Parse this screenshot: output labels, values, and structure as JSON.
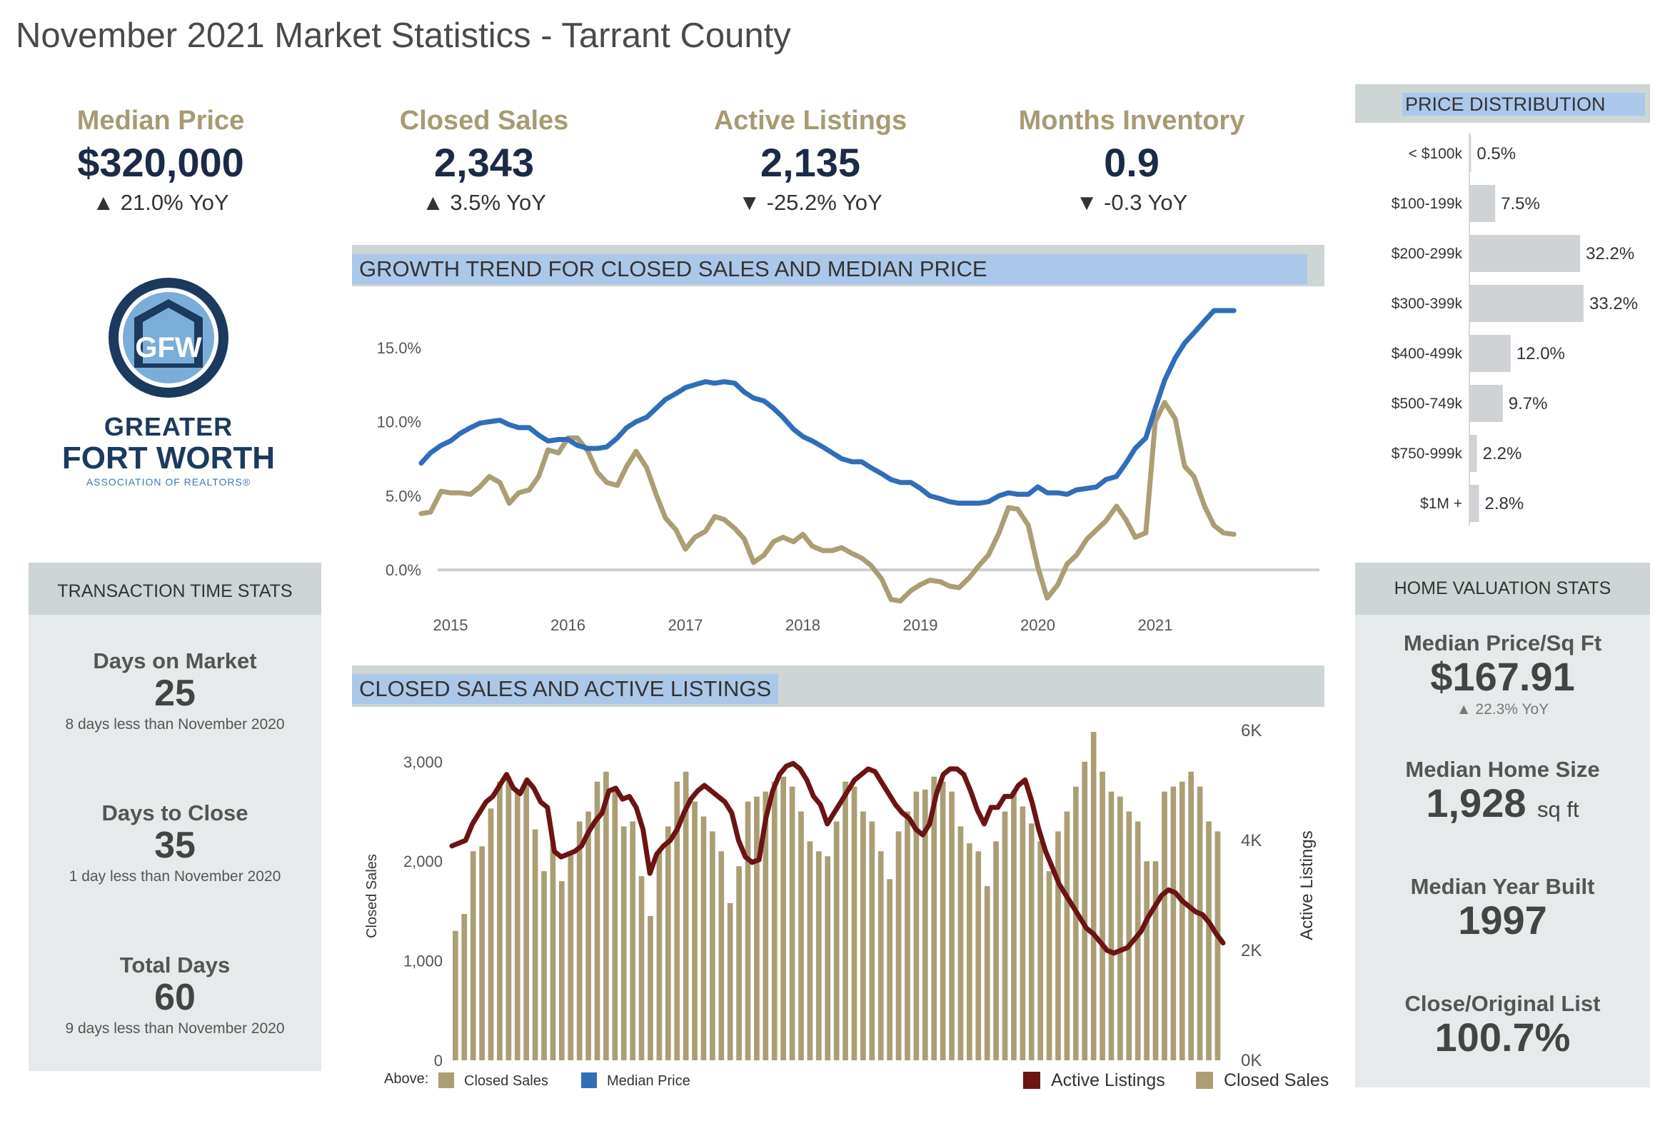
{
  "title": "November 2021 Market Statistics - Tarrant County",
  "kpis": [
    {
      "label": "Median Price",
      "value": "$320,000",
      "change": "▲ 21.0% YoY"
    },
    {
      "label": "Closed Sales",
      "value": "2,343",
      "change": "▲ 3.5% YoY"
    },
    {
      "label": "Active Listings",
      "value": "2,135",
      "change": "▼ -25.2% YoY"
    },
    {
      "label": "Months Inventory",
      "value": "0.9",
      "change": "▼ -0.3 YoY"
    }
  ],
  "logo": {
    "line1": "GREATER",
    "line2": "FORT WORTH",
    "line3": "ASSOCIATION OF REALTORS®",
    "mark": "GFW"
  },
  "transaction": {
    "header": "TRANSACTION TIME STATS",
    "stats": [
      {
        "label": "Days on Market",
        "value": "25",
        "sub": "8 days less than November 2020"
      },
      {
        "label": "Days to Close",
        "value": "35",
        "sub": "1 day less than November 2020"
      },
      {
        "label": "Total Days",
        "value": "60",
        "sub": "9 days less than November 2020"
      }
    ]
  },
  "valuation": {
    "header": "HOME VALUATION STATS",
    "price_sqft_label": "Median Price/Sq Ft",
    "price_sqft_value": "$167.91",
    "price_sqft_change": "▲ 22.3% YoY",
    "home_size_label": "Median Home Size",
    "home_size_value": "1,928",
    "home_size_unit": "sq ft",
    "year_built_label": "Median Year Built",
    "year_built_value": "1997",
    "close_list_label": "Close/Original List",
    "close_list_value": "100.7%"
  },
  "colors": {
    "closed_sales": "#ab9e75",
    "median_price": "#2f6eb8",
    "active_listings": "#6b1414",
    "kpi_label": "#a89a72",
    "kpi_value": "#1b2a47",
    "header_highlight": "#aac8ea",
    "header_bg": "#cdd5d5",
    "panel_bg": "#e6eaeb",
    "dist_bar": "#d0d3d6"
  },
  "chart_data": [
    {
      "id": "growth",
      "type": "line",
      "title": "GROWTH TREND FOR CLOSED SALES AND MEDIAN PRICE",
      "ylim": [
        -2.5,
        17.5
      ],
      "yticks": [
        0,
        5,
        10,
        15
      ],
      "ytick_labels": [
        "0.0%",
        "5.0%",
        "10.0%",
        "15.0%"
      ],
      "xlim": [
        2014.75,
        2022.0
      ],
      "xticks": [
        2015,
        2016,
        2017,
        2018,
        2019,
        2020,
        2021
      ],
      "xtick_labels": [
        "2015",
        "2016",
        "2017",
        "2018",
        "2019",
        "2020",
        "2021"
      ],
      "legend": {
        "position": "bottom-left",
        "prefix": "Above:",
        "entries": [
          "Closed Sales",
          "Median Price"
        ]
      },
      "series": [
        {
          "name": "Closed Sales",
          "color": "#ab9e75",
          "x": [
            2014.75,
            2014.83,
            2014.92,
            2015.0,
            2015.08,
            2015.17,
            2015.25,
            2015.33,
            2015.42,
            2015.5,
            2015.58,
            2015.67,
            2015.75,
            2015.83,
            2015.92,
            2016.0,
            2016.08,
            2016.17,
            2016.25,
            2016.33,
            2016.42,
            2016.5,
            2016.58,
            2016.67,
            2016.75,
            2016.83,
            2016.92,
            2017.0,
            2017.08,
            2017.17,
            2017.25,
            2017.33,
            2017.42,
            2017.5,
            2017.58,
            2017.67,
            2017.75,
            2017.83,
            2017.92,
            2018.0,
            2018.08,
            2018.17,
            2018.25,
            2018.33,
            2018.42,
            2018.5,
            2018.58,
            2018.67,
            2018.75,
            2018.83,
            2018.92,
            2019.0,
            2019.08,
            2019.17,
            2019.25,
            2019.33,
            2019.42,
            2019.5,
            2019.58,
            2019.67,
            2019.75,
            2019.83,
            2019.92,
            2020.0,
            2020.08,
            2020.17,
            2020.25,
            2020.33,
            2020.42,
            2020.5,
            2020.58,
            2020.67,
            2020.75,
            2020.83,
            2020.92,
            2021.0,
            2021.08,
            2021.17,
            2021.25,
            2021.33,
            2021.42,
            2021.5,
            2021.58,
            2021.67
          ],
          "values": [
            3.8,
            3.9,
            5.3,
            5.2,
            5.2,
            5.1,
            5.6,
            6.3,
            5.9,
            4.5,
            5.2,
            5.4,
            6.3,
            8.1,
            7.9,
            8.9,
            8.9,
            8.0,
            6.6,
            5.9,
            5.7,
            7.0,
            8.0,
            6.9,
            5.1,
            3.5,
            2.7,
            1.4,
            2.2,
            2.6,
            3.6,
            3.4,
            2.8,
            2.1,
            0.5,
            1.0,
            1.9,
            2.2,
            1.9,
            2.4,
            1.6,
            1.3,
            1.3,
            1.5,
            1.1,
            0.8,
            0.3,
            -0.6,
            -2.0,
            -2.1,
            -1.4,
            -1.0,
            -0.7,
            -0.8,
            -1.1,
            -1.2,
            -0.5,
            0.3,
            1.0,
            2.5,
            4.2,
            4.1,
            3.0,
            0.2,
            -1.9,
            -1.0,
            0.4,
            1.0,
            2.1,
            2.7,
            3.3,
            4.3,
            3.4,
            2.2,
            2.5,
            10.0,
            11.3,
            10.2,
            7.0,
            6.3,
            4.3,
            3.0,
            2.5,
            2.4
          ]
        },
        {
          "name": "Median Price",
          "color": "#2f6eb8",
          "x": [
            2014.75,
            2014.83,
            2014.92,
            2015.0,
            2015.08,
            2015.17,
            2015.25,
            2015.33,
            2015.42,
            2015.5,
            2015.58,
            2015.67,
            2015.75,
            2015.83,
            2015.92,
            2016.0,
            2016.08,
            2016.17,
            2016.25,
            2016.33,
            2016.42,
            2016.5,
            2016.58,
            2016.67,
            2016.75,
            2016.83,
            2016.92,
            2017.0,
            2017.08,
            2017.17,
            2017.25,
            2017.33,
            2017.42,
            2017.5,
            2017.58,
            2017.67,
            2017.75,
            2017.83,
            2017.92,
            2018.0,
            2018.08,
            2018.17,
            2018.25,
            2018.33,
            2018.42,
            2018.5,
            2018.58,
            2018.67,
            2018.75,
            2018.83,
            2018.92,
            2019.0,
            2019.08,
            2019.17,
            2019.25,
            2019.33,
            2019.42,
            2019.5,
            2019.58,
            2019.67,
            2019.75,
            2019.83,
            2019.92,
            2020.0,
            2020.08,
            2020.17,
            2020.25,
            2020.33,
            2020.42,
            2020.5,
            2020.58,
            2020.67,
            2020.75,
            2020.83,
            2020.92,
            2021.0,
            2021.08,
            2021.17,
            2021.25,
            2021.33,
            2021.42,
            2021.5,
            2021.58,
            2021.67
          ],
          "values": [
            7.2,
            7.9,
            8.4,
            8.7,
            9.2,
            9.6,
            9.9,
            10.0,
            10.1,
            9.8,
            9.6,
            9.6,
            9.1,
            8.7,
            8.8,
            8.8,
            8.4,
            8.2,
            8.2,
            8.3,
            8.9,
            9.6,
            10.0,
            10.3,
            10.9,
            11.5,
            11.9,
            12.3,
            12.5,
            12.7,
            12.6,
            12.7,
            12.6,
            12.0,
            11.6,
            11.4,
            10.9,
            10.3,
            9.5,
            9.0,
            8.7,
            8.3,
            7.9,
            7.5,
            7.3,
            7.3,
            6.9,
            6.5,
            6.1,
            5.9,
            5.9,
            5.5,
            5.0,
            4.8,
            4.6,
            4.5,
            4.5,
            4.5,
            4.6,
            5.0,
            5.2,
            5.1,
            5.1,
            5.6,
            5.2,
            5.2,
            5.1,
            5.4,
            5.5,
            5.6,
            6.1,
            6.3,
            7.2,
            8.2,
            8.9,
            10.9,
            12.8,
            14.3,
            15.3,
            16.0,
            16.8,
            17.5,
            17.5,
            17.5
          ]
        }
      ]
    },
    {
      "id": "sales_listings",
      "type": "bar",
      "title": "CLOSED SALES AND ACTIVE LISTINGS",
      "ylabel": "Closed Sales",
      "y2label": "Active Listings",
      "ylim": [
        0,
        3300
      ],
      "yticks": [
        0,
        1000,
        2000,
        3000
      ],
      "ytick_labels": [
        "0",
        "1,000",
        "2,000",
        "3,000"
      ],
      "y2lim": [
        0,
        6000
      ],
      "y2ticks": [
        0,
        2000,
        4000,
        6000
      ],
      "y2tick_labels": [
        "0K",
        "2K",
        "4K",
        "6K"
      ],
      "legend": {
        "position": "bottom-right",
        "entries": [
          "Active Listings",
          "Closed Sales"
        ]
      },
      "series": [
        {
          "name": "Closed Sales",
          "type": "bar",
          "color": "#ab9e75",
          "values": [
            1300,
            1470,
            2100,
            2150,
            2530,
            2800,
            2850,
            2700,
            2800,
            2320,
            1900,
            2180,
            1800,
            2100,
            2400,
            2500,
            2800,
            2900,
            2750,
            2350,
            2400,
            1850,
            1450,
            2100,
            2350,
            2800,
            2900,
            2600,
            2450,
            2300,
            2100,
            1580,
            1950,
            2600,
            2650,
            2700,
            2800,
            2850,
            2750,
            2500,
            2200,
            2100,
            2050,
            2400,
            2800,
            2750,
            2500,
            2400,
            2100,
            1820,
            2300,
            2500,
            2700,
            2720,
            2850,
            2800,
            2700,
            2350,
            2180,
            2100,
            1750,
            2200,
            2500,
            2700,
            2550,
            2380,
            2200,
            1900,
            2300,
            2500,
            2750,
            3000,
            3300,
            2900,
            2700,
            2650,
            2500,
            2400,
            2000,
            2000,
            2700,
            2750,
            2800,
            2900,
            2750,
            2400,
            2300
          ]
        },
        {
          "name": "Active Listings",
          "type": "line",
          "axis": "y2",
          "color": "#6b1414",
          "values": [
            3900,
            3950,
            4000,
            4300,
            4500,
            4700,
            4800,
            5000,
            5200,
            4950,
            4850,
            5100,
            4950,
            4700,
            4600,
            3800,
            3700,
            3750,
            3800,
            3900,
            4150,
            4350,
            4500,
            4900,
            4950,
            4750,
            4800,
            4600,
            4200,
            3400,
            3750,
            3900,
            4000,
            4200,
            4500,
            4750,
            4900,
            5000,
            4900,
            4800,
            4700,
            4500,
            4000,
            3700,
            3600,
            3650,
            4400,
            4900,
            5200,
            5350,
            5400,
            5300,
            5100,
            4800,
            4650,
            4300,
            4500,
            4700,
            4900,
            5100,
            5200,
            5300,
            5250,
            5050,
            4850,
            4650,
            4500,
            4400,
            4200,
            4100,
            4300,
            4850,
            5200,
            5300,
            5300,
            5200,
            4900,
            4550,
            4300,
            4600,
            4600,
            4800,
            4800,
            5000,
            5100,
            4700,
            4200,
            3800,
            3500,
            3200,
            3000,
            2800,
            2600,
            2400,
            2300,
            2150,
            2000,
            1950,
            2000,
            2050,
            2200,
            2350,
            2600,
            2800,
            3000,
            3100,
            3050,
            2900,
            2800,
            2700,
            2650,
            2500,
            2300,
            2135
          ]
        }
      ]
    }
  ],
  "price_distribution": {
    "header": "PRICE DISTRIBUTION",
    "rows": [
      {
        "label": "< $100k",
        "pct": 0.5,
        "text": "0.5%"
      },
      {
        "label": "$100-199k",
        "pct": 7.5,
        "text": "7.5%"
      },
      {
        "label": "$200-299k",
        "pct": 32.2,
        "text": "32.2%"
      },
      {
        "label": "$300-399k",
        "pct": 33.2,
        "text": "33.2%"
      },
      {
        "label": "$400-499k",
        "pct": 12.0,
        "text": "12.0%"
      },
      {
        "label": "$500-749k",
        "pct": 9.7,
        "text": "9.7%"
      },
      {
        "label": "$750-999k",
        "pct": 2.2,
        "text": "2.2%"
      },
      {
        "label": "$1M +",
        "pct": 2.8,
        "text": "2.8%"
      }
    ]
  }
}
